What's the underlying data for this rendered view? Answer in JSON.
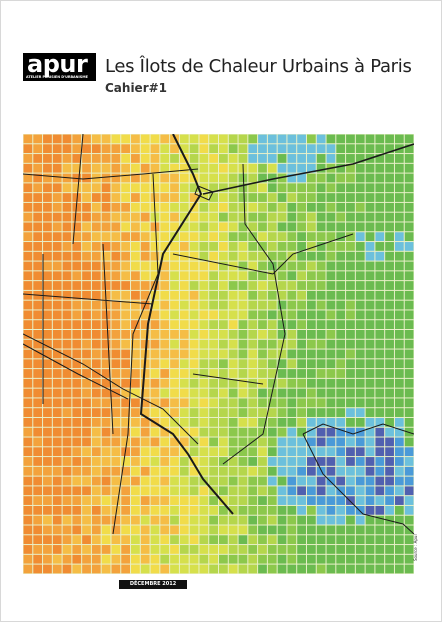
{
  "logo": {
    "name": "apur",
    "tagline": "ATELIER PARISIEN D'URBANISME"
  },
  "title": "Les Îlots de Chaleur Urbains à Paris",
  "subtitle": "Cahier#1",
  "date": "DÉCEMBRE 2012",
  "map": {
    "credit": "Source : Apur"
  }
}
